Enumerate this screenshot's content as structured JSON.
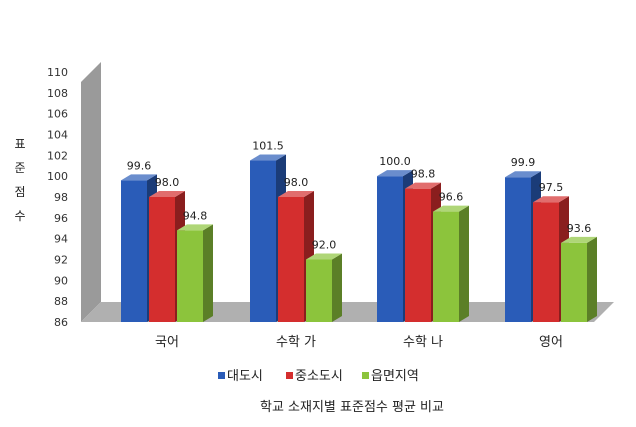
{
  "chart_data": {
    "type": "bar",
    "three_d": true,
    "categories": [
      "국어",
      "수학 가",
      "수학 나",
      "영어"
    ],
    "series": [
      {
        "name": "대도시",
        "values": [
          99.6,
          101.5,
          100.0,
          99.9
        ],
        "labels": [
          "99.6",
          "101.5",
          "100.0",
          "99.9"
        ],
        "color": "#2a5cb8"
      },
      {
        "name": "중소도시",
        "values": [
          98.0,
          98.0,
          98.8,
          97.5
        ],
        "labels": [
          "98.0",
          "98.0",
          "98.8",
          "97.5"
        ],
        "color": "#d42e2e"
      },
      {
        "name": "읍면지역",
        "values": [
          94.8,
          92.0,
          96.6,
          93.6
        ],
        "labels": [
          "94.8",
          "92.0",
          "96.6",
          "93.6"
        ],
        "color": "#8cc43c"
      }
    ],
    "ylabel": "표준점수",
    "ylim": [
      86,
      110
    ],
    "yticks": [
      "86",
      "88",
      "90",
      "92",
      "94",
      "96",
      "98",
      "100",
      "102",
      "104",
      "106",
      "108",
      "110"
    ],
    "grid": false,
    "legend_position": "bottom",
    "caption": "학교 소재지별 표준점수 평균 비교"
  }
}
